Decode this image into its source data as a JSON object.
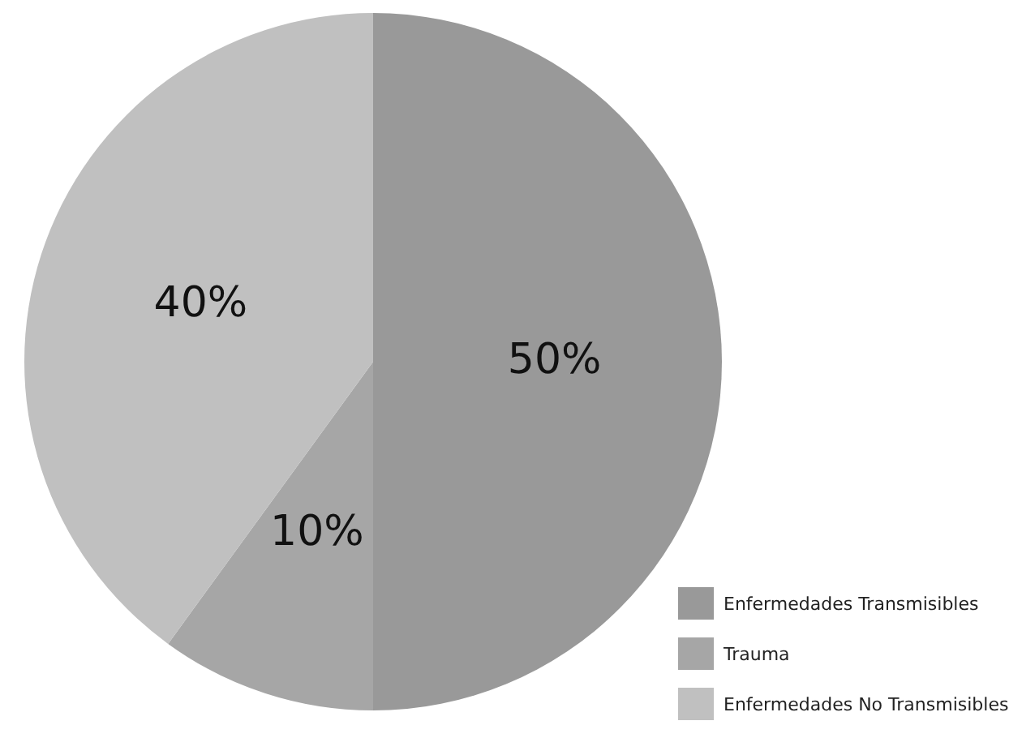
{
  "chart_data": {
    "type": "pie",
    "categories": [
      "Enfermedades Transmisibles",
      "Trauma",
      "Enfermedades No Transmisibles"
    ],
    "values": [
      50,
      10,
      40
    ],
    "colors": [
      "#999999",
      "#a6a6a6",
      "#c0c0c0"
    ],
    "value_labels": [
      "50%",
      "10%",
      "40%"
    ],
    "legend": "bottom right"
  }
}
